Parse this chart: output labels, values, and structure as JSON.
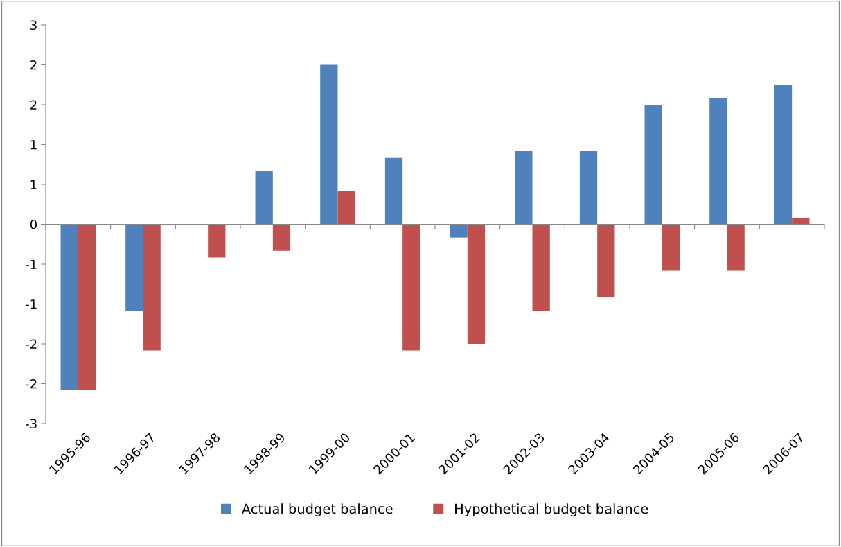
{
  "chart_data": {
    "type": "bar",
    "categories": [
      "1995-96",
      "1996-97",
      "1997-98",
      "1998-99",
      "1999-00",
      "2000-01",
      "2001-02",
      "2002-03",
      "2003-04",
      "2004-05",
      "2005-06",
      "2006-07"
    ],
    "series": [
      {
        "name": "Actual budget balance",
        "color": "#4f81bd",
        "values": [
          -2.5,
          -1.3,
          0,
          0.8,
          2.4,
          1.0,
          -0.2,
          1.1,
          1.1,
          1.8,
          1.9,
          2.1
        ]
      },
      {
        "name": "Hypothetical budget balance",
        "color": "#c0504d",
        "values": [
          -2.5,
          -1.9,
          -0.5,
          -0.4,
          0.5,
          -1.9,
          -1.8,
          -1.3,
          -1.1,
          -0.7,
          -0.7,
          0.1
        ]
      }
    ],
    "ylim": [
      -3,
      3
    ],
    "yticks": [
      -3,
      {
        "value": -2.4,
        "label": "-2"
      },
      {
        "value": -1.8,
        "label": "-2"
      },
      {
        "value": -1.2,
        "label": "-1"
      },
      {
        "value": -0.6,
        "label": "-1"
      },
      0,
      {
        "value": 0.6,
        "label": "1"
      },
      {
        "value": 1.2,
        "label": "1"
      },
      {
        "value": 1.8,
        "label": "2"
      },
      {
        "value": 2.4,
        "label": "2"
      },
      3
    ],
    "legend": "bottom"
  }
}
